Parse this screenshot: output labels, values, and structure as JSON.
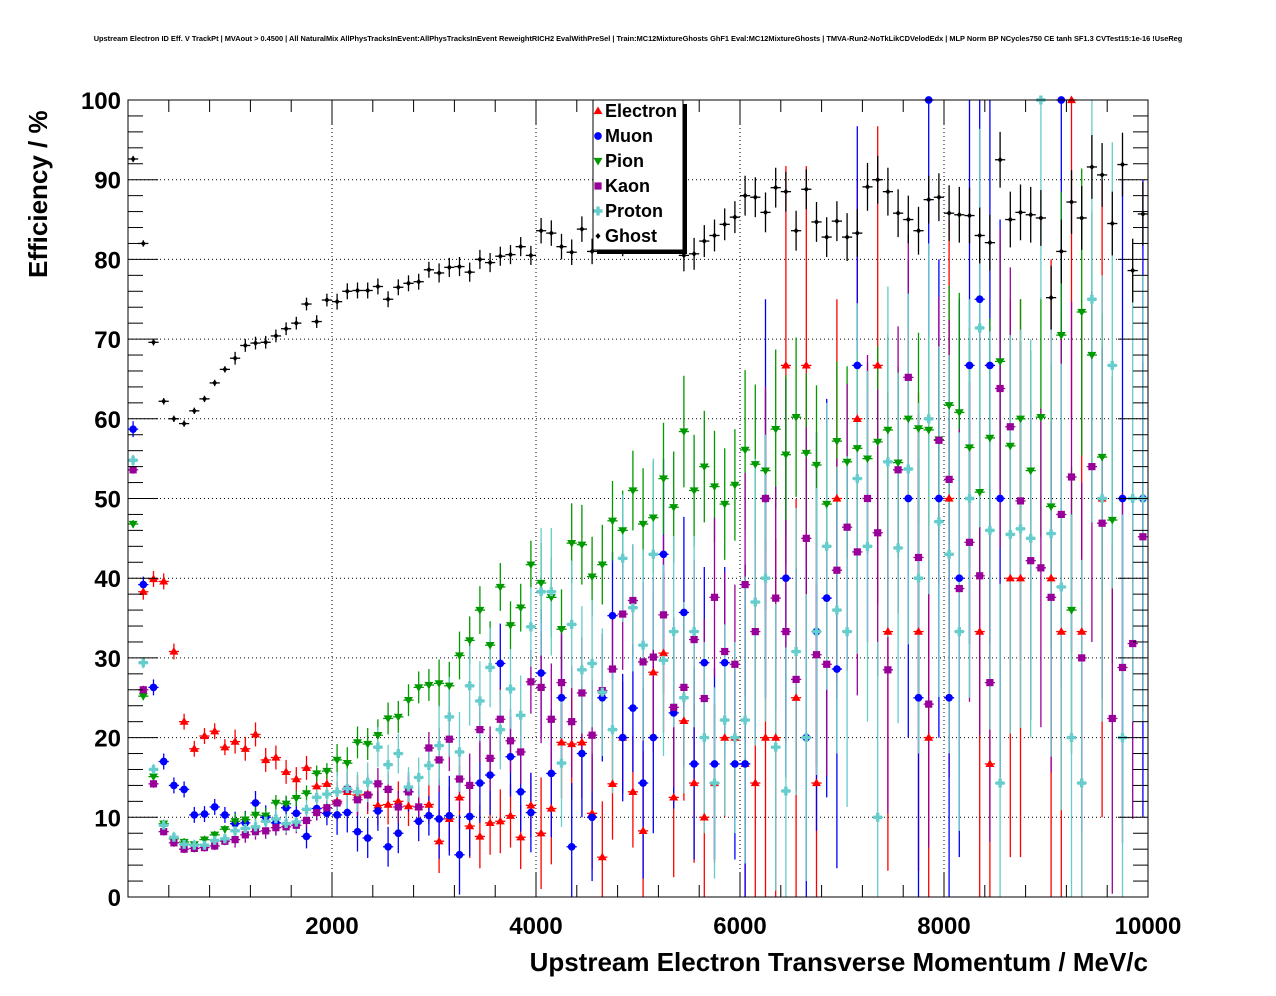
{
  "chart_data": {
    "type": "scatter",
    "title": "Upstream Electron ID Eff. V TrackPt | MVAout > 0.4500 | All NaturalMix AllPhysTracksInEvent:AllPhysTracksInEvent ReweightRICH2 EvalWithPreSel | Train:MC12MixtureGhosts GhF1 Eval:MC12MixtureGhosts | TMVA-Run2-NoTkLikCDVelodEdx | MLP Norm BP NCycles750 CE tanh SF1.3 CVTest15:1e-16 !UseReg",
    "xlabel": "Upstream Electron Transverse Momentum / MeV/c",
    "ylabel": "Efficiency / %",
    "xlim": [
      0,
      10000
    ],
    "ylim": [
      0,
      100
    ],
    "x_ticks": [
      "2000",
      "4000",
      "6000",
      "8000",
      "10000"
    ],
    "x_tick_values": [
      2000,
      4000,
      6000,
      8000,
      10000
    ],
    "y_ticks": [
      "0",
      "10",
      "20",
      "30",
      "40",
      "50",
      "60",
      "70",
      "80",
      "90",
      "100"
    ],
    "y_tick_values": [
      0,
      10,
      20,
      30,
      40,
      50,
      60,
      70,
      80,
      90,
      100
    ],
    "grid": true,
    "legend_position": "top-center",
    "bin_start": 50,
    "bin_width": 100,
    "series": [
      {
        "name": "Electron",
        "color": "#ff0000",
        "marker": "triangle-up",
        "err_per_1000": [
          1,
          1.5,
          2.5,
          4,
          7,
          10,
          25,
          30,
          35,
          40
        ],
        "values": [
          null,
          38.3,
          39.9,
          39.6,
          30.8,
          22,
          18.6,
          20.2,
          20.8,
          18.8,
          19.5,
          18.6,
          20.4,
          17.2,
          17.5,
          15.7,
          14.8,
          16.2,
          13.9,
          14.2,
          12,
          13.2,
          12.8,
          12.9,
          11.5,
          11.6,
          12,
          11.4,
          11.3,
          11.6,
          7,
          9.8,
          12.5,
          8.9,
          7.6,
          9.3,
          9.5,
          10.2,
          7.5,
          11.5,
          8,
          11.1,
          19.4,
          19.2,
          19.4,
          10.5,
          5,
          14.2,
          20,
          13.2,
          8.3,
          28.2,
          30.6,
          12.5,
          22.1,
          14.3,
          10,
          14.3,
          20,
          20,
          16.7,
          14.3,
          20,
          20,
          66.7,
          25,
          66.7,
          14.3,
          null,
          50,
          null,
          60,
          null,
          66.7,
          33.3,
          null,
          null,
          33.3,
          20,
          null,
          50,
          null,
          null,
          33.3,
          16.7,
          null,
          40,
          40,
          null,
          null,
          40,
          33.3,
          100,
          33.3,
          null,
          50,
          null,
          null,
          null,
          null
        ]
      },
      {
        "name": "Muon",
        "color": "#0000ff",
        "marker": "circle",
        "err_per_1000": [
          1,
          1.5,
          2.5,
          5,
          8,
          12,
          25,
          30,
          35,
          40
        ],
        "values": [
          58.7,
          39.2,
          26.3,
          17,
          14,
          13.5,
          10.3,
          10.4,
          11.3,
          10.3,
          9.2,
          9.3,
          11.8,
          10,
          9.3,
          11.2,
          10.5,
          7.6,
          11.1,
          10.5,
          10.3,
          10.6,
          8.2,
          7.4,
          10.8,
          6.3,
          8,
          13.2,
          9.5,
          10.2,
          9.8,
          10.2,
          5.3,
          10.1,
          14.3,
          15.3,
          29.3,
          17.6,
          13.2,
          10.6,
          28.1,
          15.5,
          25,
          6.3,
          18,
          10,
          25,
          35.3,
          20,
          23.7,
          14.3,
          20,
          43,
          23.1,
          35.7,
          16.7,
          29.4,
          16.7,
          29.4,
          16.7,
          16.7,
          null,
          50,
          null,
          40,
          null,
          20,
          33.3,
          37.5,
          28.6,
          null,
          66.7,
          null,
          null,
          null,
          null,
          50,
          25,
          100,
          50,
          25,
          40,
          66.7,
          75,
          66.7,
          50,
          null,
          null,
          null,
          null,
          null,
          100,
          null,
          null,
          null,
          null,
          null,
          50,
          null,
          50
        ]
      },
      {
        "name": "Pion",
        "color": "#009900",
        "marker": "triangle-down",
        "err_per_1000": [
          0.5,
          1,
          2,
          3,
          5,
          7,
          10,
          12,
          15,
          18
        ],
        "values": [
          46.8,
          25.2,
          15.1,
          9.2,
          7.3,
          6.9,
          6.6,
          7.2,
          7.8,
          8.5,
          9.5,
          9.7,
          10.3,
          10.2,
          11.8,
          11.7,
          12.4,
          13,
          15.5,
          15.8,
          17.2,
          16.8,
          19.4,
          19.2,
          20.3,
          22.4,
          22.6,
          24.7,
          26.3,
          26.6,
          26.8,
          26.5,
          30.3,
          32.2,
          36,
          31.6,
          38.9,
          34.1,
          36.3,
          41.7,
          39.4,
          37.6,
          33.6,
          44.4,
          44.2,
          40.2,
          41.7,
          47.2,
          46,
          51,
          46.8,
          47.6,
          52.5,
          48.9,
          58.4,
          51,
          54,
          51.5,
          49.3,
          51.7,
          56.1,
          54.3,
          53.5,
          58.7,
          55.5,
          60.2,
          55.7,
          54.2,
          49.3,
          57.2,
          54.6,
          56.3,
          55,
          57.1,
          58.6,
          54.5,
          60,
          58.8,
          58.6,
          57.4,
          61.7,
          60.8,
          56.4,
          50.8,
          57.6,
          67.2,
          56.6,
          60,
          53.5,
          60.2,
          49,
          70.5,
          36,
          73.4,
          68,
          55.2,
          47.3,
          null,
          null,
          null
        ]
      },
      {
        "name": "Kaon",
        "color": "#990099",
        "marker": "square",
        "err_per_1000": [
          0.5,
          1,
          2,
          4,
          7,
          10,
          14,
          18,
          20,
          22
        ],
        "values": [
          53.6,
          26,
          14.2,
          8.2,
          6.8,
          6,
          6.1,
          6.2,
          6.4,
          7,
          7.2,
          7.8,
          8.2,
          8.3,
          8.7,
          8.8,
          9,
          9.6,
          10.6,
          11.2,
          11.8,
          13.5,
          12.2,
          12.8,
          14.2,
          13.5,
          11.3,
          13.2,
          11.3,
          18.7,
          17.2,
          19.8,
          14.8,
          14,
          21,
          17.4,
          22.3,
          19.6,
          18.2,
          27,
          26.3,
          22.3,
          26.9,
          22,
          25.6,
          20.3,
          25.9,
          28.6,
          35.5,
          37.2,
          29.5,
          30.1,
          35.4,
          23.8,
          26.3,
          32.3,
          24.9,
          37.6,
          30.8,
          29.2,
          39.2,
          33.3,
          50,
          37.5,
          33.3,
          27.3,
          45,
          30.4,
          29.2,
          41,
          46.4,
          43.3,
          50,
          45.7,
          28.5,
          53.6,
          65.2,
          42.6,
          24.2,
          57.3,
          52.4,
          38.7,
          44.5,
          40.3,
          26.9,
          63.8,
          59,
          49.7,
          42.2,
          41.3,
          37.6,
          48,
          52.7,
          30,
          54,
          46.9,
          22.4,
          28.8,
          31.8,
          45.2
        ]
      },
      {
        "name": "Proton",
        "color": "#66cccc",
        "marker": "cross",
        "err_per_1000": [
          0.7,
          1.2,
          2.5,
          5,
          8,
          12,
          18,
          22,
          25,
          28
        ],
        "values": [
          54.8,
          29.4,
          16,
          9,
          7.5,
          6.6,
          6.5,
          6.5,
          7.1,
          7.3,
          8.3,
          8.6,
          8.8,
          9.5,
          9.8,
          9.2,
          9.4,
          11,
          12.5,
          12.9,
          13.2,
          13.6,
          13.2,
          14.4,
          18.8,
          16.6,
          18,
          13.8,
          15,
          16.5,
          19,
          22.6,
          18.2,
          26.5,
          24.6,
          28.8,
          21,
          26.1,
          22.8,
          33.9,
          38.3,
          38.3,
          16.8,
          34.2,
          28.5,
          29.3,
          25.7,
          21,
          42.5,
          36.3,
          31.6,
          43,
          29.7,
          33.3,
          25,
          33.3,
          20,
          14.3,
          22.2,
          20,
          22.2,
          37,
          40,
          18.8,
          13.3,
          30.8,
          20,
          33.3,
          44,
          36,
          33.3,
          52.5,
          44,
          10,
          54.6,
          43.8,
          53.7,
          40,
          60,
          47.1,
          43,
          33.3,
          50,
          71.4,
          46,
          14.3,
          45.5,
          46.2,
          45,
          100,
          45.6,
          38.9,
          20,
          14.3,
          75,
          50,
          66.7,
          20,
          50,
          50
        ]
      },
      {
        "name": "Ghost",
        "color": "#000000",
        "marker": "small-diamond",
        "err_per_1000": [
          0.4,
          0.8,
          1,
          1.2,
          1.6,
          2,
          2.5,
          3,
          3.5,
          4
        ],
        "values": [
          92.6,
          82,
          69.6,
          62.2,
          60,
          59.4,
          61,
          62.5,
          64.5,
          66.2,
          67.6,
          69.2,
          69.5,
          69.6,
          70.4,
          71.3,
          72,
          74.4,
          72.2,
          74.9,
          74.7,
          76,
          76.1,
          76.1,
          76.6,
          75,
          76.5,
          77,
          77.2,
          78.7,
          78.3,
          79,
          79.1,
          78.4,
          80,
          79.6,
          80.4,
          80.6,
          81.6,
          80.5,
          83.6,
          83.3,
          81.6,
          80.9,
          83.8,
          81,
          84.5,
          82.7,
          82,
          82.7,
          83.5,
          83.5,
          84,
          83,
          80.5,
          80.7,
          82.3,
          83,
          84.4,
          85.3,
          88,
          87.8,
          85.9,
          89,
          88.5,
          83.6,
          88.8,
          84.7,
          82.8,
          84.8,
          82.8,
          83.3,
          89.1,
          90,
          88.5,
          85.8,
          85,
          83.6,
          87.5,
          87.8,
          85.8,
          85.6,
          85.5,
          83,
          82.1,
          92.5,
          85,
          85.9,
          85.6,
          85.2,
          75.2,
          81,
          87.2,
          85.2,
          91.6,
          90.6,
          84.5,
          91.9,
          78.6,
          85.7
        ]
      }
    ]
  }
}
